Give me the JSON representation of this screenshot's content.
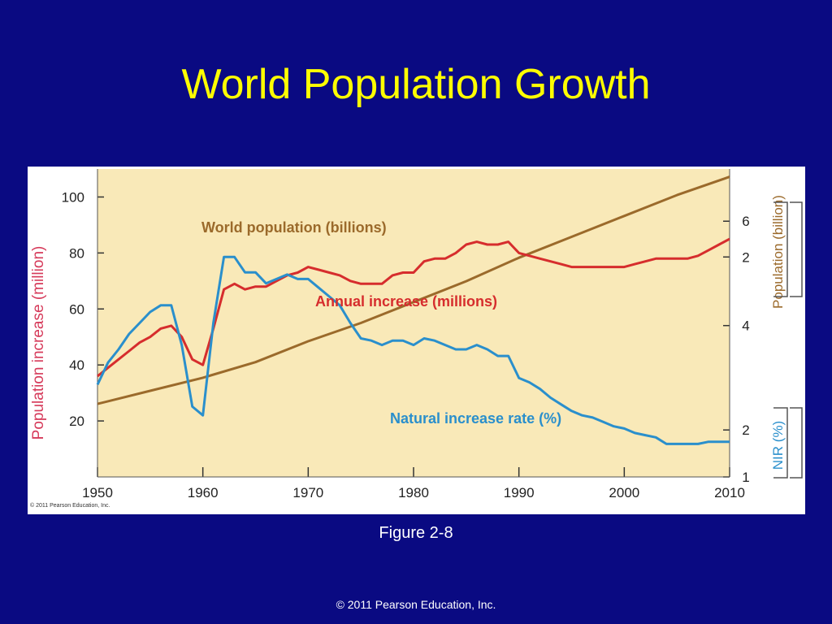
{
  "slide": {
    "title": "World Population Growth",
    "caption": "Figure 2-8",
    "footer": "© 2011 Pearson Education, Inc."
  },
  "figure": {
    "credit": "© 2011 Pearson Education, Inc."
  },
  "colors": {
    "background": "#0a0a82",
    "title": "#ffff00",
    "plot_bg": "#f9e9b8",
    "population": "#9b6a2b",
    "annual": "#d62d2d",
    "nir": "#2a8fcc",
    "left_axis": "#d63a5a"
  },
  "chart_data": {
    "type": "line",
    "x_ticks": [
      1950,
      1960,
      1970,
      1980,
      1990,
      2000,
      2010
    ],
    "xlim": [
      1950,
      2010
    ],
    "left_axis": {
      "label": "Population increase (million)",
      "ticks": [
        20,
        40,
        60,
        80,
        100
      ],
      "range": [
        0,
        110
      ]
    },
    "right_axes": [
      {
        "label": "Population (billion)",
        "ticks": [
          2,
          4,
          6
        ],
        "range": [
          1.1,
          7.0
        ]
      },
      {
        "label": "NIR (%)",
        "ticks": [
          1,
          2
        ],
        "range": [
          1.0,
          2.4
        ]
      }
    ],
    "series": [
      {
        "name": "World population (billions)",
        "axis": "Population (billion)",
        "x": [
          1950,
          1955,
          1960,
          1965,
          1970,
          1975,
          1980,
          1985,
          1990,
          1995,
          2000,
          2005,
          2010
        ],
        "values": [
          2.5,
          2.75,
          3.0,
          3.3,
          3.7,
          4.05,
          4.45,
          4.85,
          5.3,
          5.7,
          6.1,
          6.5,
          6.85
        ]
      },
      {
        "name": "Annual increase (millions)",
        "axis": "Population increase (million)",
        "x": [
          1950,
          1951,
          1952,
          1953,
          1954,
          1955,
          1956,
          1957,
          1958,
          1959,
          1960,
          1961,
          1962,
          1963,
          1964,
          1965,
          1966,
          1967,
          1968,
          1969,
          1970,
          1971,
          1972,
          1973,
          1974,
          1975,
          1976,
          1977,
          1978,
          1979,
          1980,
          1981,
          1982,
          1983,
          1984,
          1985,
          1986,
          1987,
          1988,
          1989,
          1990,
          1991,
          1992,
          1993,
          1994,
          1995,
          1996,
          1997,
          1998,
          1999,
          2000,
          2001,
          2002,
          2003,
          2004,
          2005,
          2006,
          2007,
          2008,
          2009,
          2010
        ],
        "values": [
          36,
          39,
          42,
          45,
          48,
          50,
          53,
          54,
          50,
          42,
          40,
          53,
          67,
          69,
          67,
          68,
          68,
          70,
          72,
          73,
          75,
          74,
          73,
          72,
          70,
          69,
          69,
          69,
          72,
          73,
          73,
          77,
          78,
          78,
          80,
          83,
          84,
          83,
          83,
          84,
          80,
          79,
          78,
          77,
          76,
          75,
          75,
          75,
          75,
          75,
          75,
          76,
          77,
          78,
          78,
          78,
          78,
          79,
          81,
          83,
          85
        ]
      },
      {
        "name": "Natural increase rate (%)",
        "axis": "NIR (%)",
        "x": [
          1950,
          1951,
          1952,
          1953,
          1954,
          1955,
          1956,
          1957,
          1958,
          1959,
          1960,
          1961,
          1962,
          1963,
          1964,
          1965,
          1966,
          1967,
          1968,
          1969,
          1970,
          1971,
          1972,
          1973,
          1974,
          1975,
          1976,
          1977,
          1978,
          1979,
          1980,
          1981,
          1982,
          1983,
          1984,
          1985,
          1986,
          1987,
          1988,
          1989,
          1990,
          1991,
          1992,
          1993,
          1994,
          1995,
          1996,
          1997,
          1998,
          1999,
          2000,
          2001,
          2002,
          2003,
          2004,
          2005,
          2006,
          2007,
          2008,
          2009,
          2010
        ],
        "values": [
          1.42,
          1.52,
          1.58,
          1.65,
          1.7,
          1.75,
          1.78,
          1.78,
          1.6,
          1.32,
          1.28,
          1.7,
          2.0,
          2.0,
          1.93,
          1.93,
          1.88,
          1.9,
          1.92,
          1.9,
          1.9,
          1.86,
          1.82,
          1.78,
          1.7,
          1.63,
          1.62,
          1.6,
          1.62,
          1.62,
          1.6,
          1.63,
          1.62,
          1.6,
          1.58,
          1.58,
          1.6,
          1.58,
          1.55,
          1.55,
          1.45,
          1.43,
          1.4,
          1.36,
          1.33,
          1.3,
          1.28,
          1.27,
          1.25,
          1.23,
          1.22,
          1.2,
          1.19,
          1.18,
          1.15,
          1.15,
          1.15,
          1.15,
          1.16,
          1.16,
          1.16
        ]
      }
    ]
  }
}
